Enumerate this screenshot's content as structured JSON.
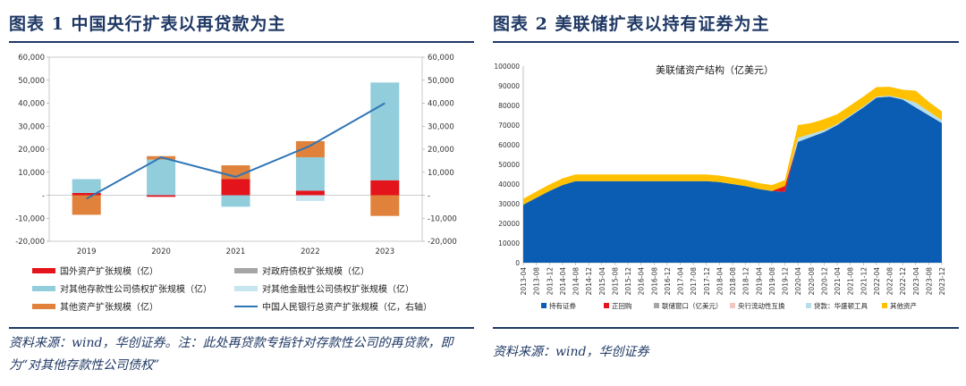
{
  "left": {
    "title": "图表 1 中国央行扩表以再贷款为主",
    "source": "资料来源：wind，华创证券。注：此处再贷款专指针对存款性公司的再贷款，即为“对其他存款性公司债权”"
  },
  "right": {
    "title": "图表 2 美联储扩表以持有证券为主",
    "source": "资料来源：wind，华创证券"
  },
  "chart_data": [
    {
      "type": "bar",
      "categories": [
        "2019",
        "2020",
        "2021",
        "2022",
        "2023"
      ],
      "stacked": true,
      "ylim": [
        -20000,
        60000
      ],
      "y2lim": [
        -20000,
        60000
      ],
      "yticks": [
        "-20,000",
        "-10,000",
        "-",
        "10,000",
        "20,000",
        "30,000",
        "40,000",
        "50,000",
        "60,000"
      ],
      "y2ticks": [
        "-20,000",
        "-10,000",
        "-",
        "10,000",
        "20,000",
        "30,000",
        "40,000",
        "50,000",
        "60,000"
      ],
      "series": [
        {
          "name": "国外资产扩张规模（亿）",
          "color": "#e3141c",
          "values": [
            1000,
            -700,
            7000,
            2000,
            6500
          ]
        },
        {
          "name": "对政府债权扩张规模（亿）",
          "color": "#a6a6a6",
          "values": [
            0,
            0,
            0,
            0,
            0
          ]
        },
        {
          "name": "对其他存款性公司债权扩张规模（亿）",
          "color": "#92cddc",
          "values": [
            6000,
            15500,
            -5000,
            14500,
            42500
          ]
        },
        {
          "name": "对其他金融性公司债权扩张规模（亿）",
          "color": "#c7e5ef",
          "values": [
            0,
            0,
            0,
            -2500,
            0
          ]
        },
        {
          "name": "其他资产扩张规模（亿）",
          "color": "#e0823c",
          "values": [
            -8500,
            1500,
            6000,
            7000,
            -9000
          ]
        }
      ],
      "line": {
        "name": "中国人民银行总资产扩张规模（亿，右轴）",
        "color": "#2e75b6",
        "values": [
          -1500,
          16500,
          8000,
          21500,
          40000
        ]
      },
      "legend_position": "bottom"
    },
    {
      "type": "area",
      "title": "美联储资产结构（亿美元）",
      "stacked": true,
      "ylim": [
        0,
        100000
      ],
      "yticks": [
        "0",
        "10000",
        "20000",
        "30000",
        "40000",
        "50000",
        "60000",
        "70000",
        "80000",
        "90000",
        "100000"
      ],
      "x": [
        "2013-04",
        "2013-08",
        "2013-12",
        "2014-04",
        "2014-08",
        "2014-12",
        "2015-04",
        "2015-08",
        "2015-12",
        "2016-04",
        "2016-08",
        "2016-12",
        "2017-04",
        "2017-08",
        "2017-12",
        "2018-04",
        "2018-08",
        "2018-12",
        "2019-04",
        "2019-08",
        "2019-12",
        "2020-04",
        "2020-08",
        "2020-12",
        "2021-04",
        "2021-08",
        "2021-12",
        "2022-04",
        "2022-08",
        "2022-12",
        "2023-04",
        "2023-08",
        "2023-12"
      ],
      "series": [
        {
          "name": "持有证券",
          "color": "#0b5db3",
          "values": [
            29500,
            33000,
            36500,
            39500,
            41500,
            41500,
            41500,
            41500,
            41500,
            41500,
            41500,
            41500,
            41500,
            41500,
            41500,
            41000,
            40000,
            39000,
            37500,
            36500,
            36000,
            61500,
            64000,
            66500,
            70000,
            74500,
            79000,
            84000,
            84500,
            83000,
            79000,
            75000,
            71000
          ]
        },
        {
          "name": "正回购",
          "color": "#e3141c",
          "values": [
            0,
            0,
            0,
            0,
            0,
            0,
            0,
            0,
            0,
            0,
            0,
            0,
            0,
            0,
            0,
            0,
            0,
            0,
            0,
            0,
            3000,
            0,
            0,
            0,
            0,
            0,
            0,
            0,
            0,
            0,
            0,
            0,
            0
          ]
        },
        {
          "name": "联储窗口（亿美元）",
          "color": "#a6a6a6",
          "values": [
            0,
            0,
            0,
            0,
            0,
            0,
            0,
            0,
            0,
            0,
            0,
            0,
            0,
            0,
            0,
            0,
            0,
            0,
            0,
            0,
            0,
            0,
            0,
            0,
            0,
            0,
            0,
            0,
            0,
            0,
            0,
            0,
            0
          ]
        },
        {
          "name": "央行流动性互换",
          "color": "#f4c7c3",
          "values": [
            0,
            0,
            0,
            0,
            0,
            0,
            0,
            0,
            0,
            0,
            0,
            0,
            0,
            0,
            0,
            0,
            0,
            0,
            0,
            0,
            0,
            0,
            0,
            0,
            0,
            0,
            0,
            0,
            0,
            0,
            0,
            0,
            0
          ]
        },
        {
          "name": "贷款：华盛顿工具",
          "color": "#b7dde8",
          "values": [
            0,
            0,
            0,
            0,
            0,
            0,
            0,
            0,
            0,
            0,
            0,
            0,
            0,
            0,
            0,
            0,
            0,
            0,
            0,
            0,
            0,
            2000,
            1500,
            1000,
            500,
            500,
            500,
            500,
            500,
            500,
            2500,
            2000,
            1500
          ]
        },
        {
          "name": "其他资产",
          "color": "#ffc000",
          "values": [
            3000,
            3200,
            3300,
            3400,
            3400,
            3400,
            3400,
            3400,
            3400,
            3400,
            3400,
            3400,
            3400,
            3400,
            3400,
            3300,
            3200,
            3100,
            3000,
            3000,
            3000,
            6500,
            5500,
            5500,
            5000,
            5000,
            5000,
            4800,
            4500,
            4500,
            6000,
            4800,
            4500
          ]
        }
      ],
      "legend_position": "bottom"
    }
  ]
}
